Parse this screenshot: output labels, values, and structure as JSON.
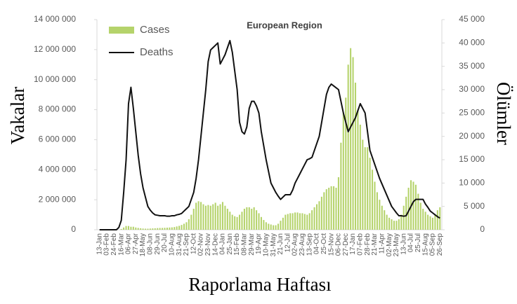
{
  "chart_data": {
    "type": "bar",
    "title": "European Region",
    "x_label": "Raporlama Haftası",
    "y_label": "Vakalar",
    "y2_label": "Ölümler",
    "legend": "top-left",
    "categories": [
      "13-Jan",
      null,
      null,
      "03-Feb",
      null,
      null,
      "24-Feb",
      null,
      null,
      "16-Mar",
      null,
      null,
      "06-Apr",
      null,
      null,
      "27-Apr",
      null,
      null,
      "18-May",
      null,
      null,
      "08-Jun",
      null,
      null,
      "29-Jun",
      null,
      null,
      "20-Jul",
      null,
      null,
      "10-Aug",
      null,
      null,
      "31-Aug",
      null,
      null,
      "21-Sep",
      null,
      null,
      "12-Oct",
      null,
      null,
      "02-Nov",
      null,
      null,
      "23-Nov",
      null,
      null,
      "14-Dec",
      null,
      null,
      "04-Jan",
      null,
      null,
      "25-Jan",
      null,
      null,
      "15-Feb",
      null,
      null,
      "08-Mar",
      null,
      null,
      "29-Mar",
      null,
      null,
      "19-Apr",
      null,
      null,
      "10-May",
      null,
      null,
      "31-May",
      null,
      null,
      "21-Jun",
      null,
      null,
      "12-Jul",
      null,
      null,
      "02-Aug",
      null,
      null,
      "23-Aug",
      null,
      null,
      "13-Sep",
      null,
      null,
      "04-Oct",
      null,
      null,
      "25-Oct",
      null,
      null,
      "15-Nov",
      null,
      null,
      "06-Dec",
      null,
      null,
      "27-Dec",
      null,
      null,
      "17-Jan",
      null,
      null,
      "07-Feb",
      null,
      null,
      "28-Feb",
      null,
      null,
      "21-Mar",
      null,
      null,
      "11-Apr",
      null,
      null,
      "02-May",
      null,
      null,
      "23-May",
      null,
      null,
      "13-Jun",
      null,
      null,
      "04-Jul",
      null,
      null,
      "25-Jul",
      null,
      null,
      "15-Aug",
      null,
      null,
      "05-Sep",
      null,
      null,
      "26-Sep"
    ],
    "series": [
      {
        "name": "Cases",
        "type": "bar",
        "color": "#b5d36b",
        "values": [
          0,
          0,
          0,
          0,
          0,
          0,
          0,
          0,
          0,
          50000,
          150000,
          250000,
          250000,
          200000,
          200000,
          150000,
          120000,
          100000,
          80000,
          70000,
          70000,
          80000,
          90000,
          100000,
          110000,
          120000,
          120000,
          130000,
          140000,
          150000,
          160000,
          180000,
          220000,
          260000,
          320000,
          400000,
          500000,
          700000,
          1000000,
          1400000,
          1800000,
          1900000,
          1850000,
          1700000,
          1600000,
          1650000,
          1600000,
          1700000,
          1800000,
          1600000,
          1700000,
          1850000,
          1600000,
          1400000,
          1200000,
          1000000,
          900000,
          850000,
          1000000,
          1200000,
          1400000,
          1500000,
          1500000,
          1400000,
          1500000,
          1300000,
          1100000,
          850000,
          650000,
          500000,
          400000,
          350000,
          300000,
          300000,
          400000,
          600000,
          800000,
          1000000,
          1050000,
          1100000,
          1100000,
          1150000,
          1150000,
          1100000,
          1100000,
          1050000,
          1000000,
          1100000,
          1300000,
          1500000,
          1700000,
          1900000,
          2200000,
          2500000,
          2700000,
          2800000,
          2900000,
          2900000,
          2800000,
          3500000,
          5800000,
          7800000,
          8800000,
          11000000,
          12100000,
          11500000,
          9800000,
          8000000,
          7000000,
          6000000,
          5500000,
          5500000,
          4800000,
          4000000,
          3200000,
          2500000,
          2000000,
          1600000,
          1300000,
          1000000,
          800000,
          700000,
          600000,
          600000,
          700000,
          1000000,
          1600000,
          2200000,
          2800000,
          3300000,
          3200000,
          3000000,
          2400000,
          1800000,
          1400000,
          1200000,
          1000000,
          900000,
          800000,
          1000000,
          1300000,
          1500000
        ]
      },
      {
        "name": "Deaths",
        "type": "line",
        "axis": "y2",
        "color": "#111111",
        "values": [
          0,
          0,
          0,
          0,
          0,
          0,
          0,
          0,
          500,
          2000,
          8000,
          15000,
          27000,
          30500,
          26000,
          21000,
          16000,
          12000,
          9000,
          7000,
          5000,
          4200,
          3600,
          3200,
          3100,
          3000,
          3000,
          3000,
          2900,
          2900,
          3000,
          3000,
          3200,
          3300,
          3500,
          4000,
          4500,
          5000,
          6500,
          8000,
          11000,
          15000,
          20000,
          25000,
          30000,
          36000,
          38500,
          39000,
          39500,
          40000,
          35500,
          36500,
          37500,
          39000,
          40500,
          38000,
          34000,
          30000,
          23000,
          21000,
          20500,
          22000,
          26000,
          27500,
          27500,
          26500,
          25000,
          21000,
          18000,
          15000,
          12500,
          10000,
          9000,
          8000,
          7200,
          6500,
          7000,
          7500,
          7500,
          7500,
          8500,
          10000,
          11000,
          12000,
          13000,
          14000,
          15000,
          15200,
          15500,
          17000,
          18500,
          20000,
          23000,
          26000,
          29000,
          30500,
          31200,
          30800,
          30400,
          30000,
          27500,
          25000,
          23000,
          21000,
          22000,
          23000,
          24000,
          25500,
          27000,
          26000,
          25000,
          21000,
          17000,
          15500,
          14000,
          12500,
          11000,
          9800,
          8600,
          7400,
          6200,
          5000,
          4300,
          3600,
          3000,
          3000,
          2900,
          3000,
          4000,
          5000,
          6000,
          6500,
          6500,
          6500,
          6500,
          5500,
          4800,
          4000,
          3600,
          3200,
          2800,
          2500
        ]
      }
    ],
    "ylim": [
      0,
      14000000
    ],
    "yticks": [
      0,
      {
        "value": 2000000,
        "label": "2 000 000"
      },
      {
        "value": 4000000,
        "label": "4 000 000"
      },
      {
        "value": 6000000,
        "label": "6 000 000"
      },
      {
        "value": 8000000,
        "label": "8 000 000"
      },
      {
        "value": 10000000,
        "label": "10 000 000"
      },
      {
        "value": 12000000,
        "label": "12 000 000"
      },
      {
        "value": 14000000,
        "label": "14 000 000"
      }
    ],
    "y2lim": [
      0,
      45000
    ],
    "y2ticks": [
      0,
      {
        "value": 5000,
        "label": "5 000"
      },
      {
        "value": 10000,
        "label": "10 000"
      },
      {
        "value": 15000,
        "label": "15 000"
      },
      {
        "value": 20000,
        "label": "20 000"
      },
      {
        "value": 25000,
        "label": "25 000"
      },
      {
        "value": 30000,
        "label": "30 000"
      },
      {
        "value": 35000,
        "label": "35 000"
      },
      {
        "value": 40000,
        "label": "40 000"
      },
      {
        "value": 45000,
        "label": "45 000"
      }
    ],
    "grid": false
  }
}
